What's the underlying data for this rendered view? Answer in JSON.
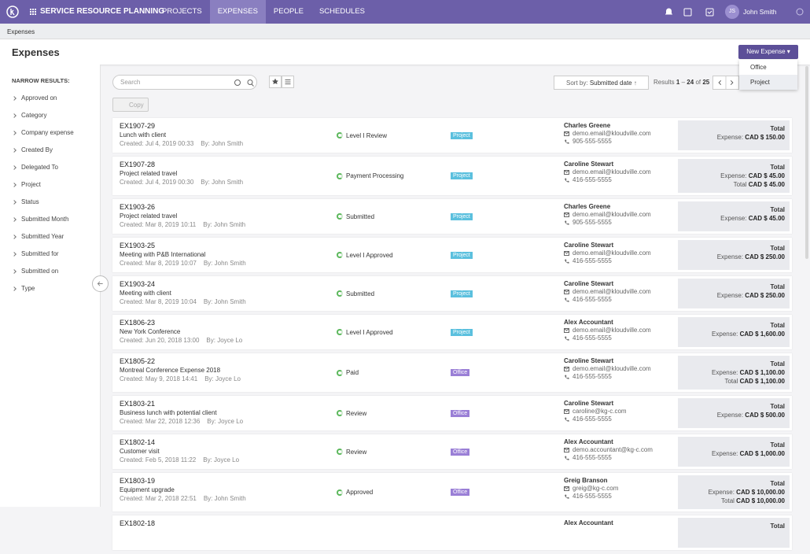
{
  "nav": {
    "brand": "SERVICE RESOURCE PLANNING",
    "tabs": [
      "PROJECTS",
      "EXPENSES",
      "PEOPLE",
      "SCHEDULES"
    ],
    "active_tab": 1,
    "user_initials": "JS",
    "user_name": "John Smith"
  },
  "breadcrumb": "Expenses",
  "header": {
    "title": "Expenses",
    "new_button": "New Expense",
    "menu": [
      "Office",
      "Project"
    ]
  },
  "sidebar": {
    "title": "NARROW RESULTS:",
    "filters": [
      "Approved on",
      "Category",
      "Company expense",
      "Created By",
      "Delegated To",
      "Project",
      "Status",
      "Submitted Month",
      "Submitted Year",
      "Submitted for",
      "Submitted on",
      "Type"
    ]
  },
  "toolbar": {
    "search_placeholder": "Search",
    "copy": "Copy",
    "sort_label": "Sort by:",
    "sort_value": "Submitted date",
    "results_label": "Results",
    "range_start": 1,
    "range_sep": "–",
    "range_end": 24,
    "of": "of",
    "total": 25
  },
  "rows": [
    {
      "id": "EX1907-29",
      "title": "Lunch with client",
      "created": "Created: Jul 4, 2019 00:33",
      "by": "By: John Smith",
      "status": "Level I Review",
      "tag": "Project",
      "tag_color": "#5bc0de",
      "contact": {
        "name": "Charles Greene",
        "email": "demo.email@kloudville.com",
        "phone": "905-555-5555"
      },
      "amount_title": "Total",
      "amounts": [
        {
          "label": "Expense:",
          "value": "CAD $ 150.00"
        }
      ]
    },
    {
      "id": "EX1907-28",
      "title": "Project related travel",
      "created": "Created: Jul 4, 2019 00:30",
      "by": "By: John Smith",
      "status": "Payment Processing",
      "tag": "Project",
      "tag_color": "#5bc0de",
      "contact": {
        "name": "Caroline Stewart",
        "email": "demo.email@kloudville.com",
        "phone": "416-555-5555"
      },
      "amount_title": "Total",
      "amounts": [
        {
          "label": "Expense:",
          "value": "CAD $ 45.00"
        },
        {
          "label": "Total",
          "value": "CAD $ 45.00"
        }
      ]
    },
    {
      "id": "EX1903-26",
      "title": "Project related travel",
      "created": "Created: Mar 8, 2019 10:11",
      "by": "By: John Smith",
      "status": "Submitted",
      "tag": "Project",
      "tag_color": "#5bc0de",
      "contact": {
        "name": "Charles Greene",
        "email": "demo.email@kloudville.com",
        "phone": "905-555-5555"
      },
      "amount_title": "Total",
      "amounts": [
        {
          "label": "Expense:",
          "value": "CAD $ 45.00"
        }
      ]
    },
    {
      "id": "EX1903-25",
      "title": "Meeting with P&B International",
      "created": "Created: Mar 8, 2019 10:07",
      "by": "By: John Smith",
      "status": "Level I Approved",
      "tag": "Project",
      "tag_color": "#5bc0de",
      "contact": {
        "name": "Caroline Stewart",
        "email": "demo.email@kloudville.com",
        "phone": "416-555-5555"
      },
      "amount_title": "Total",
      "amounts": [
        {
          "label": "Expense:",
          "value": "CAD $ 250.00"
        }
      ]
    },
    {
      "id": "EX1903-24",
      "title": "Meeting with client",
      "created": "Created: Mar 8, 2019 10:04",
      "by": "By: John Smith",
      "status": "Submitted",
      "tag": "Project",
      "tag_color": "#5bc0de",
      "contact": {
        "name": "Caroline Stewart",
        "email": "demo.email@kloudville.com",
        "phone": "416-555-5555"
      },
      "amount_title": "Total",
      "amounts": [
        {
          "label": "Expense:",
          "value": "CAD $ 250.00"
        }
      ]
    },
    {
      "id": "EX1806-23",
      "title": "New York Conference",
      "created": "Created: Jun 20, 2018 13:00",
      "by": "By: Joyce Lo",
      "status": "Level I Approved",
      "tag": "Project",
      "tag_color": "#5bc0de",
      "contact": {
        "name": "Alex Accountant",
        "email": "demo.email@kloudville.com",
        "phone": "416-555-5555"
      },
      "amount_title": "Total",
      "amounts": [
        {
          "label": "Expense:",
          "value": "CAD $ 1,600.00"
        }
      ]
    },
    {
      "id": "EX1805-22",
      "title": "Montreal Conference Expense 2018",
      "created": "Created: May 9, 2018 14:41",
      "by": "By: Joyce Lo",
      "status": "Paid",
      "tag": "Office",
      "tag_color": "#9a7fd6",
      "contact": {
        "name": "Caroline Stewart",
        "email": "demo.email@kloudville.com",
        "phone": "416-555-5555"
      },
      "amount_title": "Total",
      "amounts": [
        {
          "label": "Expense:",
          "value": "CAD $ 1,100.00"
        },
        {
          "label": "Total",
          "value": "CAD $ 1,100.00"
        }
      ]
    },
    {
      "id": "EX1803-21",
      "title": "Business lunch with potential client",
      "created": "Created: Mar 22, 2018 12:36",
      "by": "By: Joyce Lo",
      "status": "Review",
      "tag": "Office",
      "tag_color": "#9a7fd6",
      "contact": {
        "name": "Caroline Stewart",
        "email": "caroline@kg-c.com",
        "phone": "416-555-5555"
      },
      "amount_title": "Total",
      "amounts": [
        {
          "label": "Expense:",
          "value": "CAD $ 500.00"
        }
      ]
    },
    {
      "id": "EX1802-14",
      "title": "Customer visit",
      "created": "Created: Feb 5, 2018 11:22",
      "by": "By: Joyce Lo",
      "status": "Review",
      "tag": "Office",
      "tag_color": "#9a7fd6",
      "contact": {
        "name": "Alex Accountant",
        "email": "demo.accountant@kg-c.com",
        "phone": "416-555-5555"
      },
      "amount_title": "Total",
      "amounts": [
        {
          "label": "Expense:",
          "value": "CAD $ 1,000.00"
        }
      ]
    },
    {
      "id": "EX1803-19",
      "title": "Equipment upgrade",
      "created": "Created: Mar 2, 2018 22:51",
      "by": "By: John Smith",
      "status": "Approved",
      "tag": "Office",
      "tag_color": "#9a7fd6",
      "contact": {
        "name": "Greig Branson",
        "email": "greig@kg-c.com",
        "phone": "416-555-5555"
      },
      "amount_title": "Total",
      "amounts": [
        {
          "label": "Expense:",
          "value": "CAD $ 10,000.00"
        },
        {
          "label": "Total",
          "value": "CAD $ 10,000.00"
        }
      ]
    },
    {
      "id": "EX1802-18",
      "contact": {
        "name": "Alex Accountant"
      },
      "amount_title": "Total"
    }
  ]
}
